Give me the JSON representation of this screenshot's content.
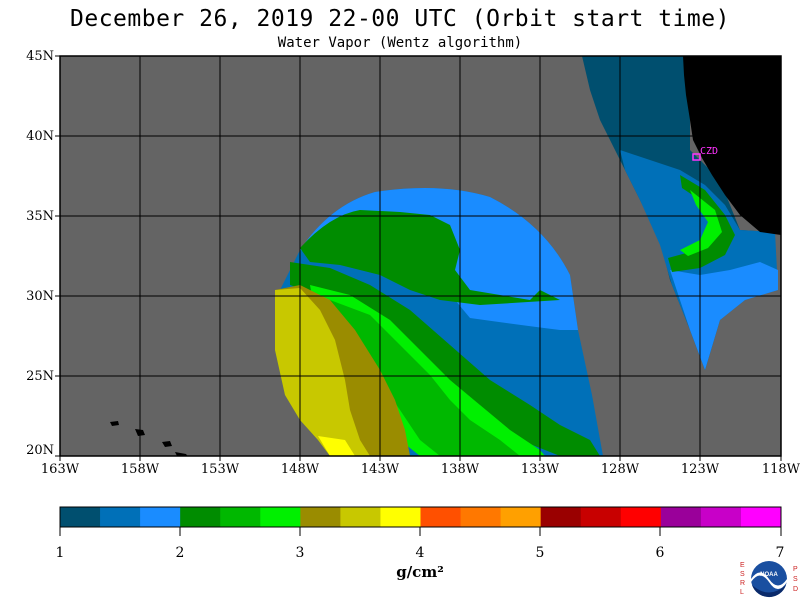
{
  "header": {
    "title": "December 26, 2019  22-00 UTC  (Orbit start time)",
    "subtitle": "Water Vapor (Wentz algorithm)"
  },
  "map": {
    "lat_labels": [
      "45N",
      "40N",
      "35N",
      "30N",
      "25N",
      "20N"
    ],
    "lon_labels": [
      "163W",
      "158W",
      "153W",
      "148W",
      "143W",
      "138W",
      "133W",
      "128W",
      "123W",
      "118W"
    ],
    "station_label": "CZD",
    "colors": {
      "no_data": "#646464",
      "land": "#000000",
      "grid": "#000000",
      "station": "#ff33ff"
    }
  },
  "colorbar": {
    "tick_labels": [
      "1",
      "2",
      "3",
      "4",
      "5",
      "6",
      "7"
    ],
    "units": "g/cm²",
    "colors": [
      "#004f6f",
      "#0070b8",
      "#1a8cff",
      "#008c00",
      "#00b800",
      "#00f000",
      "#9a8c00",
      "#c8c800",
      "#ffff00",
      "#ff5000",
      "#ff7800",
      "#ffa000",
      "#9a0000",
      "#c80000",
      "#ff0000",
      "#9a009a",
      "#c800c8",
      "#ff00ff"
    ]
  },
  "logo": {
    "left_letters": "ESRL",
    "right_letters": "PSD",
    "center_text": "NOAA"
  }
}
